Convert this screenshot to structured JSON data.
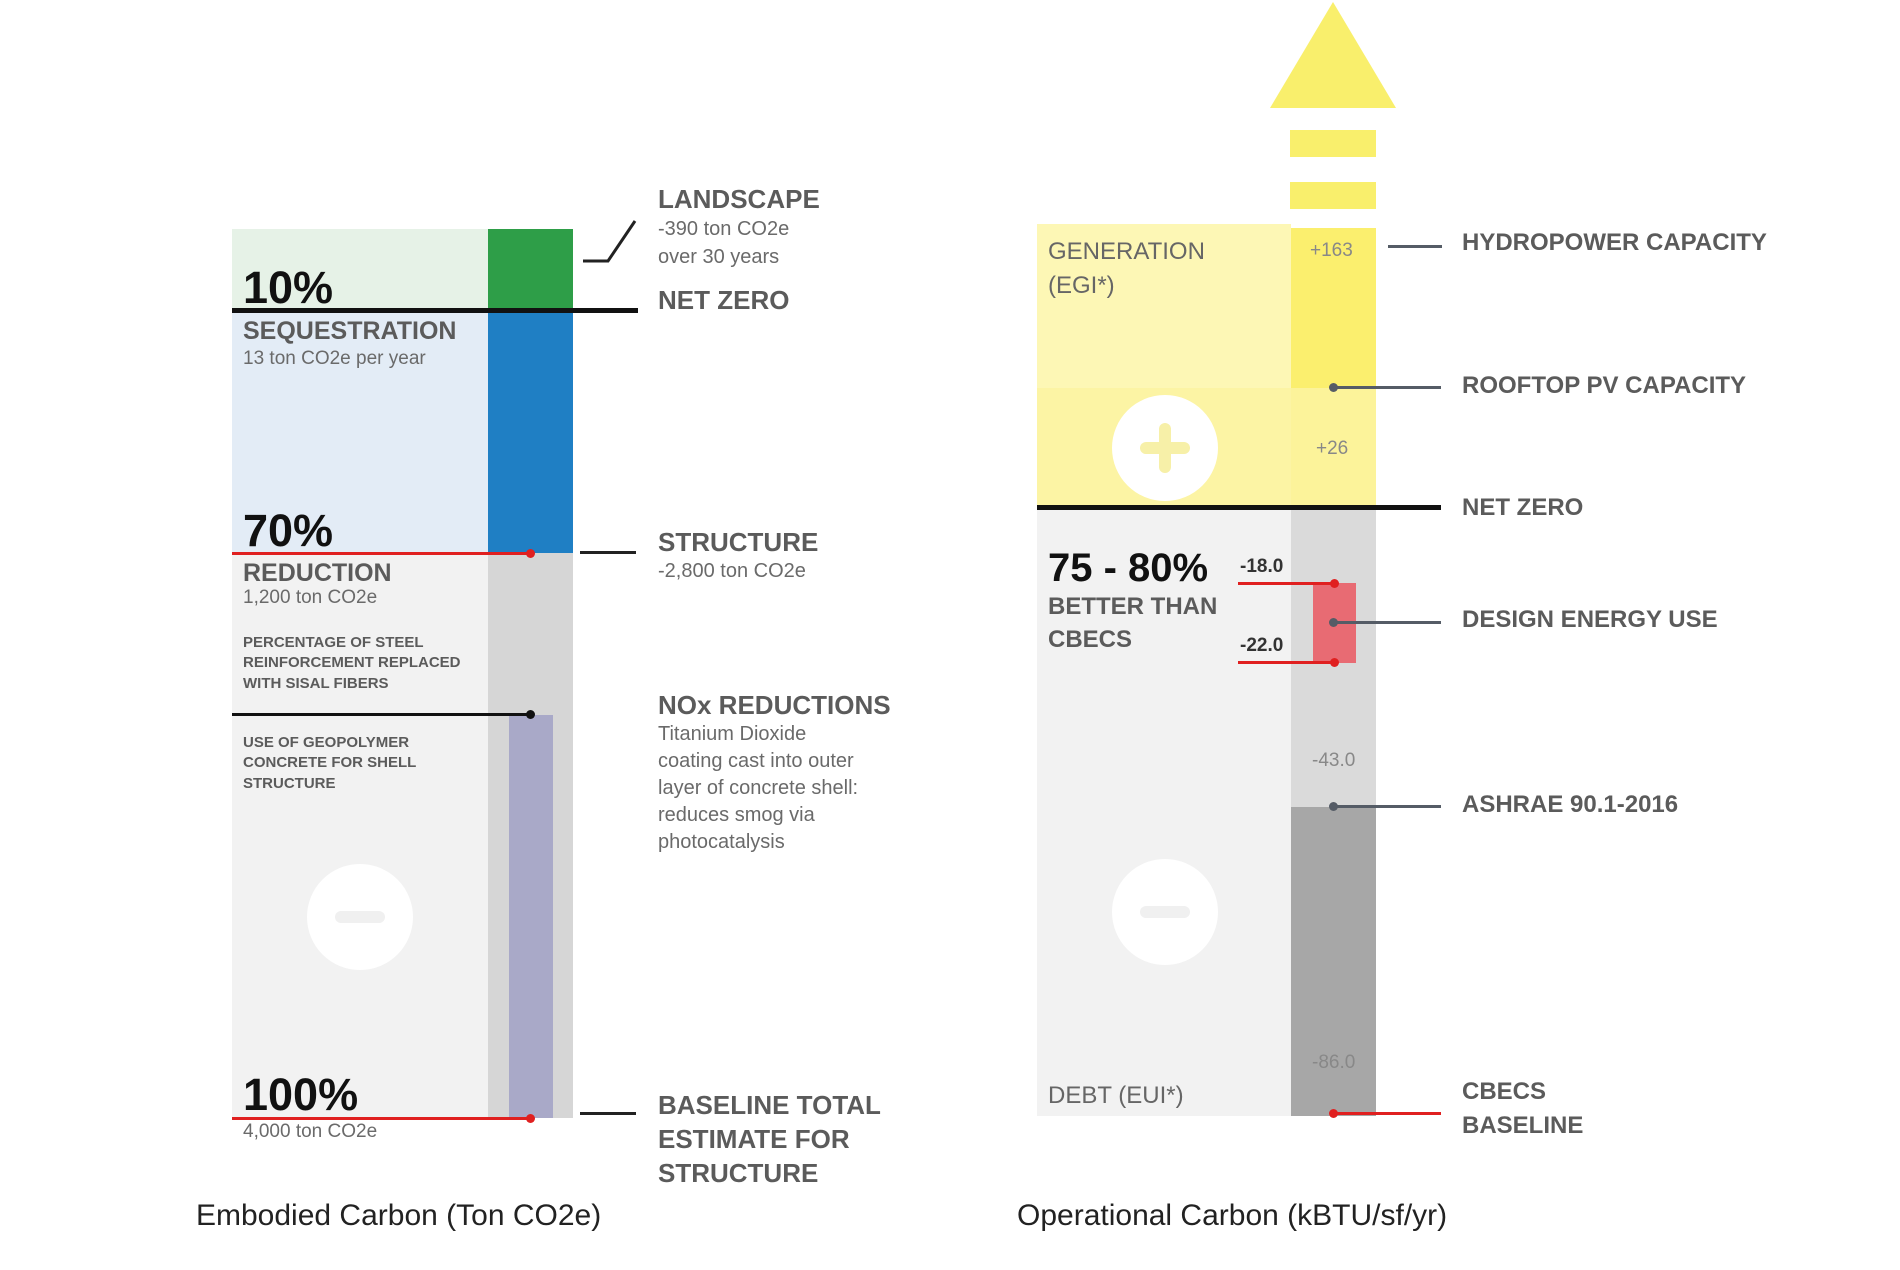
{
  "embodied": {
    "caption": "Embodied Carbon (Ton CO2e)",
    "pct_10": "10%",
    "pct_70": "70%",
    "pct_100": "100%",
    "sequestration": {
      "title": "SEQUESTRATION",
      "detail": "13 ton CO2e per year"
    },
    "reduction": {
      "title": "REDUCTION",
      "detail": "1,200 ton CO2e"
    },
    "steel_note": [
      "PERCENTAGE OF STEEL",
      "REINFORCEMENT REPLACED",
      "WITH SISAL FIBERS"
    ],
    "geopolymer_note": [
      "USE OF GEOPOLYMER",
      "CONCRETE FOR SHELL",
      "STRUCTURE"
    ],
    "baseline_value": "4,000 ton CO2e",
    "landscape": {
      "title": "LANDSCAPE",
      "lines": [
        "-390 ton CO2e",
        "over 30 years"
      ]
    },
    "net_zero": "NET ZERO",
    "structure": {
      "title": "STRUCTURE",
      "detail": "-2,800 ton CO2e"
    },
    "nox": {
      "title": "NOx REDUCTIONS",
      "lines": [
        "Titanium Dioxide",
        "coating cast into outer",
        "layer of concrete shell:",
        "reduces smog via",
        "photocatalysis"
      ]
    },
    "baseline_label": [
      "BASELINE TOTAL",
      "ESTIMATE FOR",
      "STRUCTURE"
    ],
    "colors": {
      "landscape": "#2e9e48",
      "sequestration": "#1f7fc4",
      "nox_bar": "#a9a9c8",
      "seq_bg": "#e3ecf6",
      "land_bg": "#e6f2e7",
      "base_bg": "#f2f2f2",
      "column_bg": "#d6d6d6",
      "red": "#e02020"
    },
    "icons": {
      "minus": "minus-icon"
    }
  },
  "operational": {
    "caption": "Operational Carbon (kBTU/sf/yr)",
    "generation": [
      "GENERATION",
      "(EGI*)"
    ],
    "debt": "DEBT (EUI*)",
    "better": {
      "pct": "75 - 80%",
      "lines": [
        "BETTER THAN",
        "CBECS"
      ]
    },
    "values": {
      "v163": "+163",
      "v26": "+26",
      "v18": "-18.0",
      "v22": "-22.0",
      "v43": "-43.0",
      "v86": "-86.0"
    },
    "labels": {
      "hydropower": "HYDROPOWER CAPACITY",
      "rooftop": "ROOFTOP PV CAPACITY",
      "net_zero": "NET ZERO",
      "design": "DESIGN ENERGY USE",
      "ashrae": "ASHRAE 90.1-2016",
      "cbecs": [
        "CBECS",
        "BASELINE"
      ]
    },
    "colors": {
      "yellow": "#fbef6e",
      "yellow_light": "#fdf7b5",
      "arrow": "#f9ef6c",
      "gray_bar": "#a7a7a7",
      "gray_light": "#dadada",
      "design": "#e86b73",
      "red": "#e02020"
    },
    "icons": {
      "plus": "plus-icon",
      "minus": "minus-icon",
      "arrow": "up-arrow-icon"
    }
  }
}
